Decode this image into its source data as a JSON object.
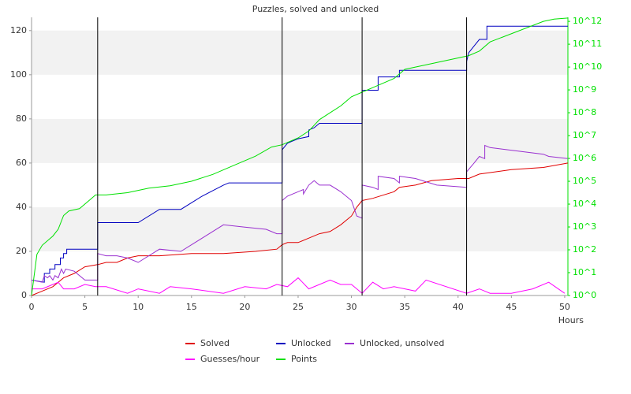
{
  "chart_data": {
    "type": "line",
    "title": "Puzzles, solved and unlocked",
    "x_label": "Hours",
    "xlim": [
      0,
      50.3
    ],
    "xticks": [
      0,
      5,
      10,
      15,
      20,
      25,
      30,
      35,
      40,
      45,
      50
    ],
    "ylim": [
      0,
      126
    ],
    "yticks": [
      0,
      20,
      40,
      60,
      80,
      100,
      120
    ],
    "y2lim": [
      1,
      1500000000000
    ],
    "y2_scale": "log",
    "y2_color": "#00e000",
    "y2ticks": [
      {
        "value": 1,
        "label": "10^0"
      },
      {
        "value": 10,
        "label": "10^1"
      },
      {
        "value": 100,
        "label": "10^2"
      },
      {
        "value": 1000,
        "label": "10^3"
      },
      {
        "value": 10000,
        "label": "10^4"
      },
      {
        "value": 100000,
        "label": "10^5"
      },
      {
        "value": 1000000,
        "label": "10^6"
      },
      {
        "value": 10000000,
        "label": "10^7"
      },
      {
        "value": 100000000,
        "label": "10^8"
      },
      {
        "value": 1000000000,
        "label": "10^9"
      },
      {
        "value": 10000000000,
        "label": "10^10"
      },
      {
        "value": 100000000000,
        "label": "10^11"
      },
      {
        "value": 1000000000000,
        "label": "10^12"
      }
    ],
    "grid": "bands",
    "vlines": [
      6.2,
      23.5,
      31.0,
      40.8
    ],
    "legend": "bottom",
    "series": [
      {
        "name": "Solved",
        "color": "#e00000",
        "x": [
          0,
          1,
          2,
          2.5,
          3,
          4,
          5,
          6.2,
          7,
          8,
          9,
          10,
          12,
          15,
          18,
          21,
          23,
          23.5,
          24,
          25,
          26,
          27,
          28,
          29,
          30,
          30.5,
          31,
          32,
          34,
          34.5,
          36,
          37.5,
          40,
          41,
          42,
          45,
          48,
          50.3
        ],
        "values": [
          0,
          2,
          4,
          6,
          8,
          10,
          13,
          14,
          15,
          15,
          17,
          18,
          18,
          19,
          19,
          20,
          21,
          23,
          24,
          24,
          26,
          28,
          29,
          32,
          36,
          40,
          43,
          44,
          47,
          49,
          50,
          52,
          53,
          53,
          55,
          57,
          58,
          60
        ]
      },
      {
        "name": "Unlocked",
        "color": "#0000c0",
        "x": [
          0,
          1.2,
          1.2,
          1.7,
          1.7,
          2.2,
          2.2,
          2.7,
          2.7,
          3,
          3,
          3.3,
          3.3,
          6.2,
          6.2,
          10,
          12,
          14,
          16,
          18,
          18.5,
          23.5,
          23.5,
          24,
          25,
          26,
          26,
          26.5,
          27,
          31,
          31,
          32.5,
          32.5,
          34.5,
          34.5,
          40.8,
          40.8,
          41,
          41.5,
          42,
          42.7,
          42.7,
          50.3
        ],
        "values": [
          7,
          6,
          10,
          10,
          12,
          12,
          14,
          14,
          17,
          17,
          19,
          19,
          21,
          21,
          33,
          33,
          39,
          39,
          45,
          50,
          51,
          51,
          66,
          69,
          71,
          72,
          75,
          76,
          78,
          78,
          93,
          93,
          99,
          99,
          102,
          102,
          106,
          110,
          113,
          116,
          116,
          122,
          122
        ]
      },
      {
        "name": "Unlocked, unsolved",
        "color": "#9a30d0",
        "x": [
          0,
          1,
          1.2,
          1.5,
          1.7,
          2,
          2.2,
          2.5,
          2.8,
          3,
          3.2,
          4,
          5,
          6.2,
          6.2,
          7,
          8,
          9,
          10,
          12,
          14,
          16,
          18,
          20,
          22,
          23,
          23.5,
          23.5,
          24,
          25.5,
          25.5,
          26,
          26.5,
          27,
          28,
          29,
          30,
          30.5,
          31,
          31,
          32,
          32.5,
          32.5,
          34,
          34.5,
          34.5,
          36,
          38,
          40.8,
          40.8,
          41.5,
          42,
          42.5,
          42.5,
          43,
          48,
          48.5,
          50.3
        ],
        "values": [
          7,
          6,
          9,
          8,
          9,
          7,
          9,
          8,
          12,
          10,
          12,
          11,
          7,
          7,
          19,
          18,
          18,
          17,
          15,
          21,
          20,
          26,
          32,
          31,
          30,
          28,
          28,
          43,
          45,
          48,
          46,
          50,
          52,
          50,
          50,
          47,
          43,
          36,
          35,
          50,
          49,
          48,
          54,
          53,
          51,
          54,
          53,
          50,
          49,
          56,
          60,
          63,
          62,
          68,
          67,
          64,
          63,
          62
        ]
      },
      {
        "name": "Guesses/hour",
        "color": "#ff00ff",
        "x": [
          0,
          1,
          2,
          2.5,
          3,
          4,
          5,
          6,
          7,
          9,
          10,
          12,
          13,
          15,
          18,
          20,
          22,
          23,
          24,
          25,
          26,
          28,
          29,
          30,
          31,
          32,
          33,
          34,
          36,
          37,
          40.8,
          42,
          43,
          45,
          47,
          48.5,
          50
        ],
        "values": [
          3,
          3,
          5,
          6,
          3,
          3,
          5,
          4,
          4,
          1,
          3,
          1,
          4,
          3,
          1,
          4,
          3,
          5,
          4,
          8,
          3,
          7,
          5,
          5,
          1,
          6,
          3,
          4,
          2,
          7,
          1,
          3,
          1,
          1,
          3,
          6,
          1
        ]
      },
      {
        "name": "Points",
        "color": "#00e000",
        "axis": "y2",
        "x": [
          0,
          0.5,
          1,
          2,
          2.5,
          3,
          3.5,
          4.5,
          5,
          5.5,
          6,
          7,
          9,
          11,
          13,
          15,
          17,
          19,
          21,
          22.5,
          23.5,
          25,
          26,
          27,
          28,
          29,
          30,
          31,
          32,
          34,
          35,
          37,
          41,
          42,
          43,
          48,
          49,
          50.3
        ],
        "values": [
          1,
          63,
          158,
          398,
          794,
          3162,
          5012,
          6310,
          10000,
          15849,
          25119,
          25119,
          31623,
          50119,
          63096,
          100000,
          199526,
          501187,
          1258925,
          3162278,
          3981072,
          7943282,
          15848932,
          50118723,
          100000000,
          199526231,
          501187234,
          794328235,
          1258925412,
          3162277660,
          7943282347,
          12589254118,
          31622776602,
          50118723363,
          125892541179,
          1000000000000,
          1258925411794,
          1400000000000
        ]
      }
    ]
  }
}
